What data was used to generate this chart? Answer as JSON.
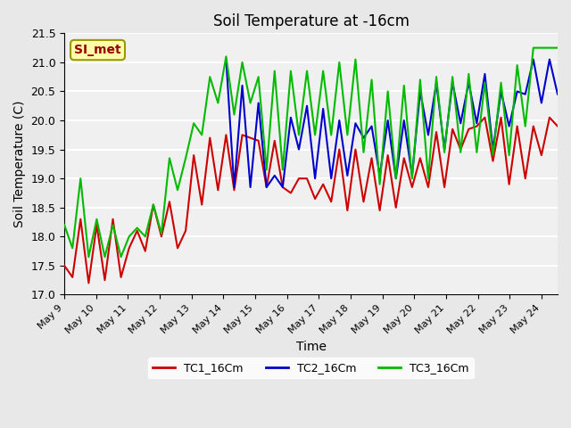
{
  "title": "Soil Temperature at -16cm",
  "xlabel": "Time",
  "ylabel": "Soil Temperature (C)",
  "ylim": [
    17.0,
    21.5
  ],
  "xlim": [
    0,
    15.5
  ],
  "annotation_text": "SI_met",
  "annotation_bg": "#FFFFAA",
  "annotation_border": "#999900",
  "annotation_text_color": "#990000",
  "bg_color": "#E8E8E8",
  "plot_bg": "#F5F5F5",
  "grid_color": "#FFFFFF",
  "line_colors": {
    "TC1": "#CC0000",
    "TC2": "#0000CC",
    "TC3": "#00BB00"
  },
  "x_tick_labels": [
    "May 9",
    "May 10",
    "May 11",
    "May 12",
    "May 13",
    "May 14",
    "May 15",
    "May 16",
    "May 17",
    "May 18",
    "May 19",
    "May 20",
    "May 21",
    "May 22",
    "May 23",
    "May 24"
  ],
  "TC1_16Cm": [
    17.5,
    17.3,
    18.3,
    17.2,
    18.2,
    17.25,
    18.3,
    17.3,
    17.8,
    18.1,
    17.75,
    18.55,
    18.0,
    18.6,
    17.8,
    18.1,
    19.4,
    18.55,
    19.7,
    18.8,
    19.75,
    18.8,
    19.75,
    19.7,
    19.65,
    18.85,
    19.65,
    18.85,
    18.75,
    19.0,
    19.0,
    18.65,
    18.9,
    18.6,
    19.5,
    18.45,
    19.5,
    18.6,
    19.35,
    18.45,
    19.4,
    18.5,
    19.35,
    18.85,
    19.35,
    18.85,
    19.8,
    18.85,
    19.85,
    19.5,
    19.85,
    19.9,
    20.05,
    19.3,
    20.05,
    18.9,
    19.9,
    19.0,
    19.9,
    19.4,
    20.05,
    19.9
  ],
  "TC2_16Cm": [
    null,
    null,
    null,
    null,
    null,
    null,
    null,
    null,
    null,
    null,
    null,
    null,
    null,
    null,
    null,
    null,
    null,
    null,
    null,
    null,
    21.05,
    18.85,
    20.6,
    18.85,
    20.3,
    18.85,
    19.05,
    18.85,
    20.05,
    19.5,
    20.25,
    19.0,
    20.2,
    19.0,
    20.0,
    19.05,
    19.95,
    19.7,
    19.9,
    19.05,
    20.0,
    19.0,
    20.0,
    19.05,
    20.5,
    19.75,
    20.65,
    19.5,
    20.65,
    19.95,
    20.65,
    19.95,
    20.8,
    19.5,
    20.5,
    19.9,
    20.5,
    20.45,
    21.05,
    20.3,
    21.05,
    20.45
  ],
  "TC3_16Cm": [
    18.2,
    17.8,
    19.0,
    17.65,
    18.3,
    17.65,
    18.2,
    17.65,
    18.0,
    18.15,
    18.0,
    18.55,
    18.05,
    19.35,
    18.8,
    19.35,
    19.95,
    19.75,
    20.75,
    20.3,
    21.1,
    20.1,
    21.0,
    20.3,
    20.75,
    19.15,
    20.85,
    19.15,
    20.85,
    19.75,
    20.85,
    19.75,
    20.85,
    19.75,
    21.0,
    19.75,
    21.05,
    19.45,
    20.7,
    18.9,
    20.5,
    19.0,
    20.6,
    19.0,
    20.7,
    19.0,
    20.75,
    19.45,
    20.75,
    19.45,
    20.8,
    19.45,
    20.65,
    19.4,
    20.65,
    19.4,
    20.95,
    19.9,
    21.25,
    21.25,
    21.25,
    21.25
  ]
}
